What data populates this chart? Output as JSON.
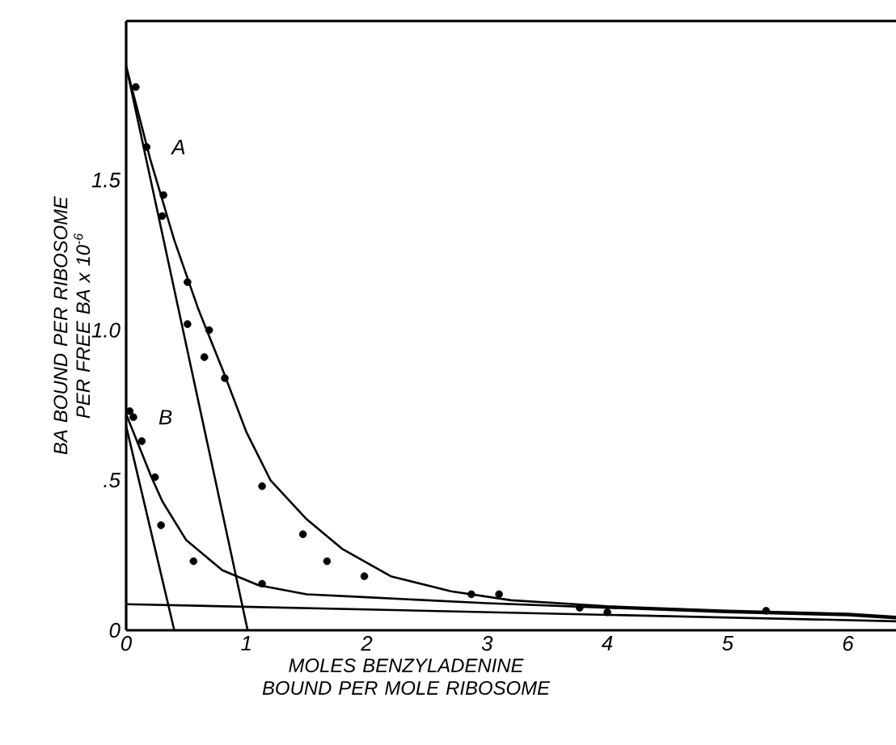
{
  "chart_data": {
    "type": "scatter",
    "xlabel": "MOLES BENZYLADENINE BOUND PER MOLE RIBOSOME",
    "ylabel": "BA BOUND PER RIBOSOME PER FREE BA x 10$^{-6}$",
    "xlim": [
      0,
      6.4
    ],
    "ylim": [
      0,
      2.03
    ],
    "xticks": [
      0,
      1,
      2,
      3,
      4,
      5,
      6
    ],
    "yticks": [
      0,
      {
        "value": 0.5,
        "label": ".5"
      },
      {
        "value": 1.0,
        "label": "1.0"
      },
      1.5
    ],
    "grid": false,
    "marker": "circle",
    "series": [
      {
        "name": "A",
        "color": "#000000",
        "x": [
          0.08,
          0.17,
          0.31,
          0.3,
          0.51,
          0.51,
          0.69,
          0.65,
          0.82,
          1.13,
          1.47,
          1.67,
          1.98,
          2.87,
          3.1,
          3.77,
          4.0,
          5.32
        ],
        "values": [
          1.81,
          1.61,
          1.45,
          1.38,
          1.16,
          1.02,
          1.0,
          0.91,
          0.84,
          0.48,
          0.32,
          0.23,
          0.18,
          0.12,
          0.12,
          0.075,
          0.06,
          0.065
        ]
      },
      {
        "name": "B",
        "color": "#000000",
        "x": [
          0.03,
          0.06,
          0.13,
          0.24,
          0.29,
          0.56,
          1.13
        ],
        "values": [
          0.73,
          0.71,
          0.63,
          0.51,
          0.35,
          0.23,
          0.155
        ]
      },
      {
        "type": "line",
        "marker": "none",
        "color": "#000000",
        "x": [
          0,
          0.2,
          0.4,
          0.6,
          0.8,
          1.0,
          1.2,
          1.5,
          1.8,
          2.2,
          2.7,
          3.2,
          4,
          5,
          6,
          6.4
        ],
        "values": [
          1.88,
          1.57,
          1.3,
          1.07,
          0.87,
          0.66,
          0.5,
          0.37,
          0.27,
          0.18,
          0.13,
          0.1,
          0.08,
          0.065,
          0.055,
          0.045
        ]
      },
      {
        "type": "line",
        "marker": "none",
        "color": "#000000",
        "x": [
          0,
          1.01
        ],
        "values": [
          1.88,
          0
        ]
      },
      {
        "type": "line",
        "marker": "none",
        "color": "#000000",
        "x": [
          0,
          0.1,
          0.2,
          0.3,
          0.5,
          0.8,
          1.1,
          1.5,
          2,
          3,
          4,
          5,
          6,
          6.4
        ],
        "values": [
          0.72,
          0.62,
          0.52,
          0.43,
          0.3,
          0.2,
          0.15,
          0.12,
          0.11,
          0.09,
          0.075,
          0.06,
          0.05,
          0.04
        ]
      },
      {
        "type": "line",
        "marker": "none",
        "color": "#000000",
        "x": [
          0,
          0.4
        ],
        "values": [
          0.68,
          0
        ]
      },
      {
        "type": "line",
        "marker": "none",
        "color": "#000000",
        "x": [
          0,
          6.4
        ],
        "values": [
          0.087,
          0.03
        ]
      }
    ]
  }
}
